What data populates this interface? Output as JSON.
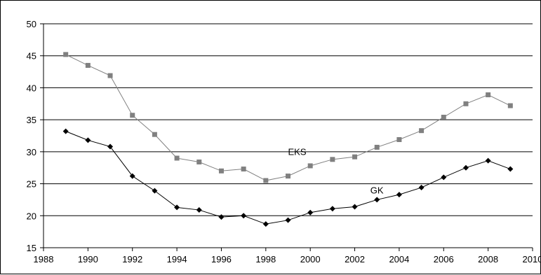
{
  "chart_data": {
    "type": "line",
    "title": "",
    "xlabel": "",
    "ylabel": "",
    "xlim": [
      1988,
      2010
    ],
    "ylim": [
      15,
      50
    ],
    "x_ticks": [
      1988,
      1990,
      1992,
      1994,
      1996,
      1998,
      2000,
      2002,
      2004,
      2006,
      2008,
      2010
    ],
    "y_ticks": [
      15,
      20,
      25,
      30,
      35,
      40,
      45,
      50
    ],
    "x_tick_labels": [
      "1988",
      "1990",
      "1992",
      "1994",
      "1996",
      "1998",
      "2000",
      "2002",
      "2004",
      "2006",
      "2008",
      "2010"
    ],
    "y_tick_labels": [
      "15",
      "20",
      "25",
      "30",
      "35",
      "40",
      "45",
      "50"
    ],
    "grid": "horizontal",
    "legend": "none",
    "x": [
      1989,
      1990,
      1991,
      1992,
      1993,
      1994,
      1995,
      1996,
      1997,
      1998,
      1999,
      2000,
      2001,
      2002,
      2003,
      2004,
      2005,
      2006,
      2007,
      2008,
      2009
    ],
    "series": [
      {
        "name": "EKS",
        "label_at": [
          1999,
          29.5
        ],
        "color": "#808080",
        "marker": "square",
        "values": [
          45.2,
          43.5,
          41.9,
          35.7,
          32.7,
          29.0,
          28.4,
          27.0,
          27.3,
          25.5,
          26.2,
          27.8,
          28.8,
          29.2,
          30.7,
          31.9,
          33.3,
          35.4,
          37.5,
          38.9,
          37.2
        ]
      },
      {
        "name": "GK",
        "label_at": [
          2002.7,
          23.5
        ],
        "color": "#000000",
        "marker": "diamond",
        "values": [
          33.2,
          31.8,
          30.8,
          26.2,
          23.9,
          21.3,
          20.9,
          19.8,
          20.0,
          18.7,
          19.3,
          20.5,
          21.1,
          21.4,
          22.5,
          23.3,
          24.4,
          26.0,
          27.5,
          28.6,
          27.3
        ]
      }
    ]
  }
}
